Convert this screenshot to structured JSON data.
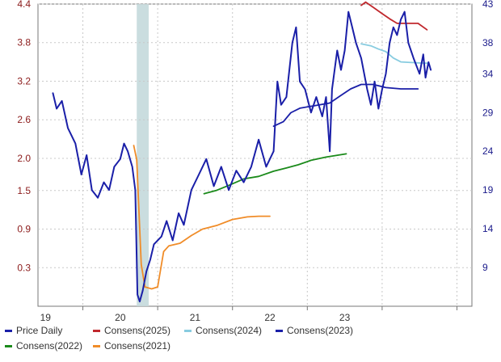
{
  "chart_data": {
    "type": "line",
    "title": "",
    "xlabel": "",
    "ylabel_left": "",
    "ylabel_right": "",
    "x_ticks": [
      "19",
      "20",
      "21",
      "22",
      "23"
    ],
    "x_range": [
      2018.4,
      2024.2
    ],
    "left_axis": {
      "ticks": [
        "4.4",
        "3.8",
        "3.2",
        "2.6",
        "2.0",
        "1.5",
        "0.9",
        "0.3"
      ],
      "range": [
        -0.3,
        4.4
      ]
    },
    "right_axis": {
      "ticks": [
        "43",
        "38",
        "34",
        "29",
        "24",
        "19",
        "14",
        "9"
      ],
      "range": [
        4,
        43
      ]
    },
    "shaded_period": {
      "start": 2019.72,
      "end": 2019.88
    },
    "grid": true,
    "legend_position": "bottom",
    "series": [
      {
        "name": "Price Daily",
        "axis": "right",
        "color": "#1a1fa8",
        "points": [
          [
            2018.6,
            31.5
          ],
          [
            2018.65,
            29.5
          ],
          [
            2018.72,
            30.5
          ],
          [
            2018.8,
            27
          ],
          [
            2018.9,
            25
          ],
          [
            2018.98,
            21
          ],
          [
            2019.05,
            23.5
          ],
          [
            2019.12,
            19
          ],
          [
            2019.2,
            18
          ],
          [
            2019.28,
            20
          ],
          [
            2019.35,
            19
          ],
          [
            2019.42,
            22
          ],
          [
            2019.5,
            23
          ],
          [
            2019.55,
            25
          ],
          [
            2019.6,
            24
          ],
          [
            2019.66,
            22
          ],
          [
            2019.7,
            19
          ],
          [
            2019.73,
            5.5
          ],
          [
            2019.76,
            4.6
          ],
          [
            2019.8,
            6
          ],
          [
            2019.85,
            8.5
          ],
          [
            2019.9,
            10
          ],
          [
            2019.95,
            12
          ],
          [
            2020.05,
            13
          ],
          [
            2020.12,
            15
          ],
          [
            2020.2,
            12.5
          ],
          [
            2020.28,
            16
          ],
          [
            2020.35,
            14.5
          ],
          [
            2020.45,
            19
          ],
          [
            2020.55,
            21
          ],
          [
            2020.65,
            23
          ],
          [
            2020.75,
            19.5
          ],
          [
            2020.85,
            22
          ],
          [
            2020.95,
            19
          ],
          [
            2021.05,
            21.5
          ],
          [
            2021.15,
            20
          ],
          [
            2021.25,
            22
          ],
          [
            2021.35,
            25.5
          ],
          [
            2021.45,
            22
          ],
          [
            2021.55,
            24
          ],
          [
            2021.6,
            33
          ],
          [
            2021.65,
            30
          ],
          [
            2021.72,
            31
          ],
          [
            2021.8,
            38
          ],
          [
            2021.85,
            40
          ],
          [
            2021.9,
            33
          ],
          [
            2021.97,
            32
          ],
          [
            2022.05,
            29
          ],
          [
            2022.12,
            31
          ],
          [
            2022.2,
            28.5
          ],
          [
            2022.25,
            31
          ],
          [
            2022.3,
            24
          ],
          [
            2022.33,
            32
          ],
          [
            2022.4,
            37
          ],
          [
            2022.45,
            34.5
          ],
          [
            2022.5,
            37
          ],
          [
            2022.55,
            42
          ],
          [
            2022.6,
            40
          ],
          [
            2022.65,
            38
          ],
          [
            2022.72,
            36
          ],
          [
            2022.8,
            32
          ],
          [
            2022.85,
            30
          ],
          [
            2022.9,
            33
          ],
          [
            2022.95,
            29.5
          ],
          [
            2023.0,
            32
          ],
          [
            2023.05,
            34
          ],
          [
            2023.1,
            38
          ],
          [
            2023.15,
            40
          ],
          [
            2023.2,
            39
          ],
          [
            2023.25,
            41
          ],
          [
            2023.3,
            42
          ],
          [
            2023.35,
            38
          ],
          [
            2023.42,
            36
          ],
          [
            2023.5,
            34
          ],
          [
            2023.55,
            36.5
          ],
          [
            2023.58,
            33.5
          ],
          [
            2023.62,
            35.5
          ],
          [
            2023.65,
            34.5
          ]
        ]
      },
      {
        "name": "Consens(2025)",
        "axis": "left",
        "color": "#c0282d",
        "points": [
          [
            2022.72,
            4.38
          ],
          [
            2022.78,
            4.43
          ],
          [
            2022.88,
            4.35
          ],
          [
            2023.0,
            4.25
          ],
          [
            2023.1,
            4.17
          ],
          [
            2023.2,
            4.1
          ],
          [
            2023.35,
            4.1
          ],
          [
            2023.48,
            4.1
          ],
          [
            2023.6,
            4.0
          ]
        ]
      },
      {
        "name": "Consens(2024)",
        "axis": "left",
        "color": "#88cce0",
        "points": [
          [
            2022.72,
            3.78
          ],
          [
            2022.85,
            3.75
          ],
          [
            2022.95,
            3.7
          ],
          [
            2023.05,
            3.66
          ],
          [
            2023.15,
            3.56
          ],
          [
            2023.25,
            3.5
          ],
          [
            2023.4,
            3.49
          ],
          [
            2023.55,
            3.48
          ],
          [
            2023.62,
            3.48
          ]
        ]
      },
      {
        "name": "Consens(2023)",
        "axis": "left",
        "color": "#1a1fa8",
        "points": [
          [
            2021.55,
            2.5
          ],
          [
            2021.68,
            2.57
          ],
          [
            2021.78,
            2.71
          ],
          [
            2021.9,
            2.78
          ],
          [
            2022.1,
            2.82
          ],
          [
            2022.3,
            2.86
          ],
          [
            2022.45,
            2.98
          ],
          [
            2022.58,
            3.08
          ],
          [
            2022.72,
            3.15
          ],
          [
            2022.88,
            3.15
          ],
          [
            2023.05,
            3.1
          ],
          [
            2023.25,
            3.08
          ],
          [
            2023.48,
            3.08
          ]
        ]
      },
      {
        "name": "Consens(2022)",
        "axis": "left",
        "color": "#1a8a1a",
        "points": [
          [
            2020.62,
            1.45
          ],
          [
            2020.78,
            1.5
          ],
          [
            2020.95,
            1.58
          ],
          [
            2021.15,
            1.68
          ],
          [
            2021.35,
            1.72
          ],
          [
            2021.55,
            1.8
          ],
          [
            2021.72,
            1.85
          ],
          [
            2021.88,
            1.9
          ],
          [
            2022.05,
            1.97
          ],
          [
            2022.25,
            2.02
          ],
          [
            2022.52,
            2.07
          ]
        ]
      },
      {
        "name": "Consens(2021)",
        "axis": "left",
        "color": "#f08c28",
        "points": [
          [
            2019.68,
            2.2
          ],
          [
            2019.72,
            1.98
          ],
          [
            2019.78,
            0.35
          ],
          [
            2019.83,
            0.0
          ],
          [
            2019.92,
            -0.03
          ],
          [
            2020.0,
            0.0
          ],
          [
            2020.08,
            0.55
          ],
          [
            2020.15,
            0.64
          ],
          [
            2020.3,
            0.68
          ],
          [
            2020.45,
            0.8
          ],
          [
            2020.6,
            0.9
          ],
          [
            2020.8,
            0.96
          ],
          [
            2021.0,
            1.05
          ],
          [
            2021.2,
            1.09
          ],
          [
            2021.35,
            1.1
          ],
          [
            2021.5,
            1.1
          ]
        ]
      }
    ]
  }
}
